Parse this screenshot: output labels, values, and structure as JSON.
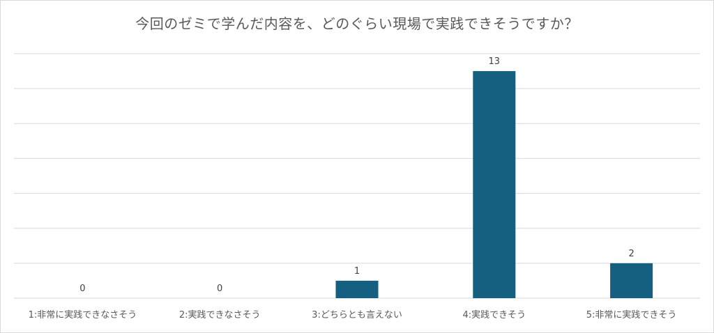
{
  "chart_data": {
    "type": "bar",
    "title": "今回のゼミで学んだ内容を、どのぐらい現場で実践できそうですか？",
    "categories": [
      "1:非常に実践できなさそう",
      "2:実践できなさそう",
      "3:どちらとも言えない",
      "4:実践できそう",
      "5:非常に実践できそう"
    ],
    "values": [
      0,
      0,
      1,
      13,
      2
    ],
    "ylim": [
      0,
      14
    ],
    "grid": true,
    "legend": "none",
    "colors": {
      "bar": "#155f80",
      "grid": "#d9d9d9",
      "text": "#595959"
    }
  }
}
